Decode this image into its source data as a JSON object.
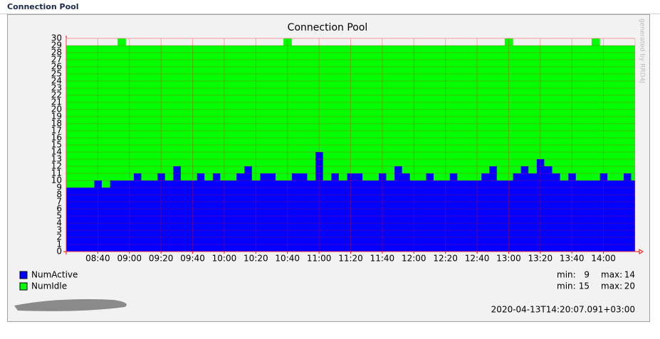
{
  "header": {
    "title": "Connection Pool"
  },
  "chart_data": {
    "type": "stacked_area",
    "title": "Connection Pool",
    "watermark": "generated by RRD4J",
    "x": [
      "08:20",
      "08:25",
      "08:30",
      "08:35",
      "08:40",
      "08:45",
      "08:50",
      "08:55",
      "09:00",
      "09:05",
      "09:10",
      "09:15",
      "09:20",
      "09:25",
      "09:30",
      "09:35",
      "09:40",
      "09:45",
      "09:50",
      "09:55",
      "10:00",
      "10:05",
      "10:10",
      "10:15",
      "10:20",
      "10:25",
      "10:30",
      "10:35",
      "10:40",
      "10:45",
      "10:50",
      "10:55",
      "11:00",
      "11:05",
      "11:10",
      "11:15",
      "11:20",
      "11:25",
      "11:30",
      "11:35",
      "11:40",
      "11:45",
      "11:50",
      "11:55",
      "12:00",
      "12:05",
      "12:10",
      "12:15",
      "12:20",
      "12:25",
      "12:30",
      "12:35",
      "12:40",
      "12:45",
      "12:50",
      "12:55",
      "13:00",
      "13:05",
      "13:10",
      "13:15",
      "13:20",
      "13:25",
      "13:30",
      "13:35",
      "13:40",
      "13:45",
      "13:50",
      "13:55",
      "14:00",
      "14:05",
      "14:10",
      "14:15",
      "14:20"
    ],
    "series": [
      {
        "name": "NumActive",
        "color": "#0000ff",
        "values": [
          9,
          9,
          9,
          9,
          10,
          9,
          10,
          10,
          10,
          11,
          10,
          10,
          11,
          10,
          12,
          10,
          10,
          11,
          10,
          11,
          10,
          10,
          11,
          12,
          10,
          11,
          11,
          10,
          10,
          11,
          11,
          10,
          14,
          10,
          11,
          10,
          11,
          11,
          10,
          10,
          11,
          10,
          12,
          11,
          10,
          10,
          11,
          10,
          10,
          11,
          10,
          10,
          10,
          11,
          12,
          10,
          10,
          11,
          12,
          11,
          13,
          12,
          11,
          10,
          11,
          10,
          10,
          10,
          11,
          10,
          10,
          11,
          10
        ]
      },
      {
        "name": "NumIdle",
        "color": "#00ff00",
        "values": [
          20,
          20,
          20,
          20,
          19,
          20,
          19,
          20,
          19,
          18,
          19,
          19,
          18,
          19,
          17,
          19,
          19,
          18,
          19,
          18,
          19,
          19,
          18,
          17,
          19,
          18,
          18,
          19,
          20,
          18,
          18,
          19,
          15,
          19,
          18,
          19,
          18,
          18,
          19,
          19,
          18,
          19,
          17,
          18,
          19,
          19,
          18,
          19,
          19,
          18,
          19,
          19,
          19,
          18,
          17,
          19,
          20,
          18,
          17,
          18,
          16,
          17,
          18,
          19,
          18,
          19,
          19,
          20,
          18,
          19,
          19,
          18,
          19
        ]
      }
    ],
    "stat_labels": [
      "min:",
      "max:"
    ],
    "stats": [
      [
        9,
        14
      ],
      [
        15,
        20
      ]
    ],
    "xlim": [
      "08:20",
      "14:20"
    ],
    "xticks": [
      "08:40",
      "09:00",
      "09:20",
      "09:40",
      "10:00",
      "10:20",
      "10:40",
      "11:00",
      "11:20",
      "11:40",
      "12:00",
      "12:20",
      "12:40",
      "13:00",
      "13:20",
      "13:40",
      "14:00"
    ],
    "ylim": [
      0,
      30
    ],
    "yticks": [
      0,
      1,
      2,
      3,
      4,
      5,
      6,
      7,
      8,
      9,
      10,
      11,
      12,
      13,
      14,
      15,
      16,
      17,
      18,
      19,
      20,
      21,
      22,
      23,
      24,
      25,
      26,
      27,
      28,
      29,
      30
    ],
    "grid": true,
    "timestamp": "2020-04-13T14:20:07.091+03:00"
  }
}
